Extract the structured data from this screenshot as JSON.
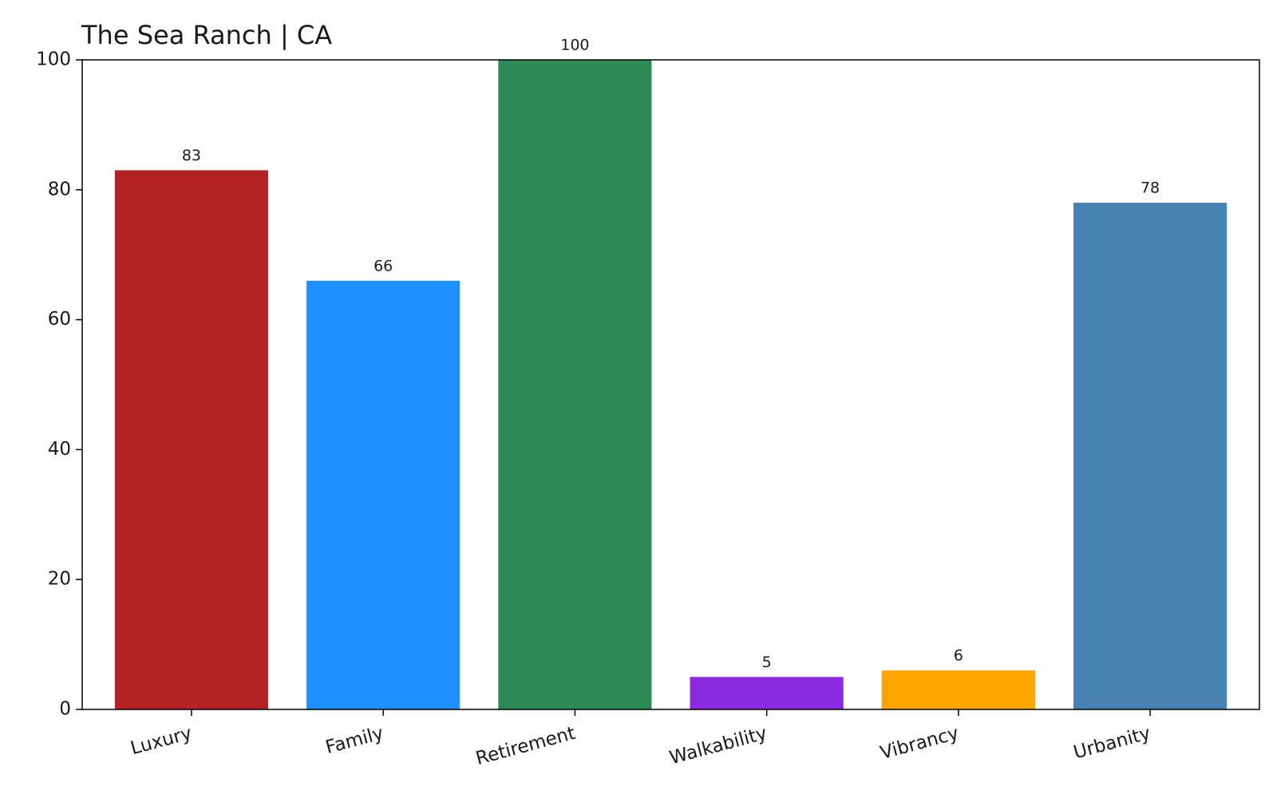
{
  "chart_data": {
    "type": "bar",
    "title": "The Sea Ranch | CA",
    "categories": [
      "Luxury",
      "Family",
      "Retirement",
      "Walkability",
      "Vibrancy",
      "Urbanity"
    ],
    "values": [
      83,
      66,
      100,
      5,
      6,
      78
    ],
    "colors": [
      "#b22222",
      "#1e90ff",
      "#2e8b57",
      "#8a2be2",
      "#ffa500",
      "#4682b4"
    ],
    "ylim": [
      0,
      100
    ],
    "yticks": [
      0,
      20,
      40,
      60,
      80,
      100
    ],
    "grid": false
  }
}
